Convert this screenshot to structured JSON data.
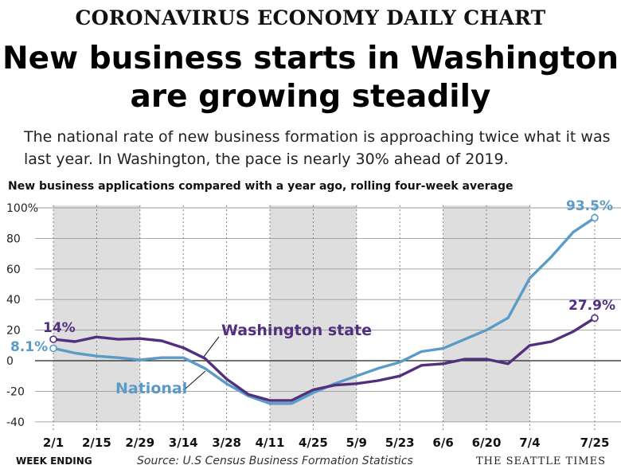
{
  "header": {
    "kicker": "CORONAVIRUS ECONOMY DAILY CHART",
    "headline_line1": "New business starts in Washington",
    "headline_line2": "are growing steadily",
    "dek": "The national rate of new business formation is approaching twice what it was last year. In Washington, the pace is nearly 30% ahead of 2019."
  },
  "chart_data": {
    "type": "line",
    "subtitle": "New business applications compared with a year ago, rolling four-week average",
    "x_labels": [
      "2/1",
      "2/15",
      "2/29",
      "3/14",
      "3/28",
      "4/11",
      "4/25",
      "5/9",
      "5/23",
      "6/6",
      "6/20",
      "7/4",
      "7/25"
    ],
    "x_label_weeks": [
      0,
      2,
      4,
      6,
      8,
      10,
      12,
      14,
      16,
      18,
      20,
      22,
      25
    ],
    "shaded_week_ranges": [
      [
        0,
        4
      ],
      [
        10,
        14
      ],
      [
        18,
        22
      ]
    ],
    "y_ticks": [
      -40,
      -20,
      0,
      20,
      40,
      60,
      80,
      100
    ],
    "y_tick_labels": [
      "-40",
      "-20",
      "0",
      "20",
      "40",
      "60",
      "80",
      "100%"
    ],
    "ylim": [
      -40,
      100
    ],
    "xlabel": "WEEK ENDING",
    "grid": true,
    "series": [
      {
        "name": "National",
        "color": "#5b9bc8",
        "weeks": [
          0,
          1,
          2,
          3,
          4,
          5,
          6,
          7,
          8,
          9,
          10,
          11,
          12,
          13,
          14,
          15,
          16,
          17,
          18,
          19,
          20,
          21,
          22,
          23,
          24,
          25
        ],
        "values": [
          8.1,
          5,
          3,
          2,
          0.5,
          2,
          2,
          -5,
          -15,
          -23,
          -28,
          -28,
          -21,
          -15,
          -10,
          -5,
          -1,
          6,
          8,
          14,
          20,
          28,
          54,
          68,
          84,
          93.5
        ],
        "start_label": "8.1%",
        "end_label": "93.5%"
      },
      {
        "name": "Washington state",
        "color": "#53307f",
        "weeks": [
          0,
          1,
          2,
          3,
          4,
          5,
          6,
          7,
          8,
          9,
          10,
          11,
          12,
          13,
          14,
          15,
          16,
          17,
          18,
          19,
          20,
          21,
          22,
          23,
          24,
          25
        ],
        "values": [
          14,
          12.5,
          15.5,
          14,
          14.5,
          13,
          8.5,
          1.5,
          -12,
          -22,
          -26,
          -26,
          -19,
          -16,
          -15,
          -13,
          -10,
          -3,
          -2,
          1,
          1,
          -2,
          10,
          12.5,
          19,
          27.9
        ],
        "start_label": "14%",
        "end_label": "27.9%"
      }
    ]
  },
  "footer": {
    "week_ending": "WEEK ENDING",
    "source": "Source: U.S Census Business Formation Statistics",
    "credit": "THE SEATTLE TIMES"
  }
}
